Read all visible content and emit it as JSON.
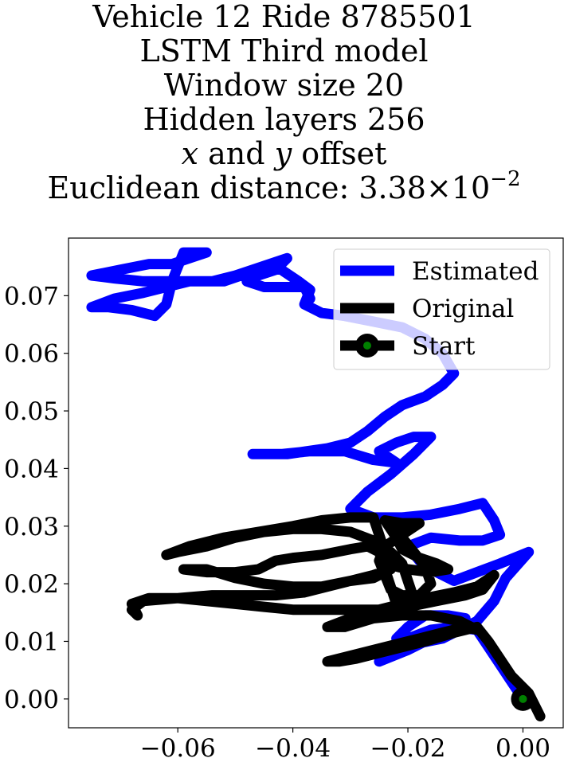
{
  "title_lines": {
    "line1": "Vehicle 12 Ride 8785501",
    "line2": "LSTM Third model",
    "line3": "Window size 20",
    "line4": "Hidden layers 256",
    "line5_x": "x",
    "line5_mid": " and ",
    "line5_y": "y",
    "line5_end": " offset",
    "line6_text": "Euclidean distance: 3.38×10",
    "line6_exp": "−2"
  },
  "chart_data": {
    "type": "line",
    "title": "Vehicle 12 Ride 8785501 LSTM Third model Window size 20 Hidden layers 256 x and y offset Euclidean distance: 3.38×10^-2",
    "xlabel": "",
    "ylabel": "",
    "xlim": [
      -0.079,
      0.007
    ],
    "ylim": [
      -0.005,
      0.08
    ],
    "x_ticks": [
      -0.06,
      -0.04,
      -0.02,
      0.0
    ],
    "x_tick_labels": [
      "−0.06",
      "−0.04",
      "−0.02",
      "0.00"
    ],
    "y_ticks": [
      0.0,
      0.01,
      0.02,
      0.03,
      0.04,
      0.05,
      0.06,
      0.07
    ],
    "y_tick_labels": [
      "0.00",
      "0.01",
      "0.02",
      "0.03",
      "0.04",
      "0.05",
      "0.06",
      "0.07"
    ],
    "grid": false,
    "legend_position": "top-right",
    "colors": {
      "estimated": "#0000ff",
      "original": "#000000",
      "start_marker": "#008000"
    },
    "series": [
      {
        "name": "Estimated",
        "color": "#0000ff",
        "points": [
          [
            0.0,
            0.0
          ],
          [
            -0.002,
            0.003
          ],
          [
            -0.004,
            0.006
          ],
          [
            -0.006,
            0.009
          ],
          [
            -0.008,
            0.012
          ],
          [
            -0.012,
            0.0125
          ],
          [
            -0.016,
            0.012
          ],
          [
            -0.02,
            0.0105
          ],
          [
            -0.023,
            0.008
          ],
          [
            -0.025,
            0.0065
          ],
          [
            -0.02,
            0.0085
          ],
          [
            -0.014,
            0.0115
          ],
          [
            -0.01,
            0.014
          ],
          [
            -0.013,
            0.0145
          ],
          [
            -0.017,
            0.0145
          ],
          [
            -0.02,
            0.0125
          ],
          [
            -0.022,
            0.0105
          ],
          [
            -0.019,
            0.0095
          ],
          [
            -0.014,
            0.0105
          ],
          [
            -0.008,
            0.0135
          ],
          [
            -0.005,
            0.017
          ],
          [
            -0.003,
            0.021
          ],
          [
            0.001,
            0.0255
          ],
          [
            -0.004,
            0.0235
          ],
          [
            -0.008,
            0.022
          ],
          [
            -0.012,
            0.0205
          ],
          [
            -0.015,
            0.022
          ],
          [
            -0.018,
            0.024
          ],
          [
            -0.02,
            0.0265
          ],
          [
            -0.016,
            0.028
          ],
          [
            -0.011,
            0.0275
          ],
          [
            -0.007,
            0.0275
          ],
          [
            -0.004,
            0.0285
          ],
          [
            -0.005,
            0.031
          ],
          [
            -0.007,
            0.034
          ],
          [
            -0.011,
            0.033
          ],
          [
            -0.016,
            0.032
          ],
          [
            -0.021,
            0.0315
          ],
          [
            -0.026,
            0.0315
          ],
          [
            -0.03,
            0.033
          ],
          [
            -0.027,
            0.036
          ],
          [
            -0.023,
            0.039
          ],
          [
            -0.019,
            0.0425
          ],
          [
            -0.016,
            0.0455
          ],
          [
            -0.019,
            0.0455
          ],
          [
            -0.022,
            0.0445
          ],
          [
            -0.025,
            0.043
          ],
          [
            -0.022,
            0.041
          ],
          [
            -0.026,
            0.0415
          ],
          [
            -0.031,
            0.043
          ],
          [
            -0.037,
            0.043
          ],
          [
            -0.042,
            0.0425
          ],
          [
            -0.047,
            0.0425
          ],
          [
            -0.041,
            0.0425
          ],
          [
            -0.034,
            0.0435
          ],
          [
            -0.03,
            0.0445
          ],
          [
            -0.027,
            0.0465
          ],
          [
            -0.024,
            0.049
          ],
          [
            -0.021,
            0.051
          ],
          [
            -0.017,
            0.0525
          ],
          [
            -0.014,
            0.0545
          ],
          [
            -0.012,
            0.0565
          ],
          [
            -0.014,
            0.06
          ],
          [
            -0.017,
            0.0625
          ],
          [
            -0.021,
            0.0645
          ],
          [
            -0.026,
            0.0655
          ],
          [
            -0.031,
            0.0665
          ],
          [
            -0.035,
            0.067
          ],
          [
            -0.038,
            0.0685
          ],
          [
            -0.037,
            0.071
          ],
          [
            -0.039,
            0.0725
          ],
          [
            -0.042,
            0.0745
          ],
          [
            -0.045,
            0.075
          ],
          [
            -0.049,
            0.0735
          ],
          [
            -0.052,
            0.0725
          ],
          [
            -0.056,
            0.0725
          ],
          [
            -0.061,
            0.0725
          ],
          [
            -0.066,
            0.0725
          ],
          [
            -0.071,
            0.073
          ],
          [
            -0.075,
            0.0735
          ],
          [
            -0.07,
            0.0745
          ],
          [
            -0.065,
            0.0755
          ],
          [
            -0.061,
            0.0755
          ],
          [
            -0.058,
            0.0765
          ],
          [
            -0.055,
            0.0775
          ],
          [
            -0.059,
            0.0775
          ],
          [
            -0.061,
            0.0725
          ],
          [
            -0.062,
            0.0685
          ],
          [
            -0.064,
            0.0665
          ],
          [
            -0.068,
            0.0675
          ],
          [
            -0.072,
            0.068
          ],
          [
            -0.075,
            0.068
          ],
          [
            -0.071,
            0.0695
          ],
          [
            -0.066,
            0.0705
          ],
          [
            -0.062,
            0.0715
          ],
          [
            -0.058,
            0.0725
          ],
          [
            -0.054,
            0.0725
          ],
          [
            -0.05,
            0.0735
          ],
          [
            -0.047,
            0.0745
          ],
          [
            -0.044,
            0.0755
          ],
          [
            -0.041,
            0.0765
          ],
          [
            -0.043,
            0.0745
          ],
          [
            -0.046,
            0.0735
          ],
          [
            -0.048,
            0.0725
          ],
          [
            -0.045,
            0.0715
          ],
          [
            -0.042,
            0.0715
          ],
          [
            -0.038,
            0.0715
          ],
          [
            -0.037,
            0.0695
          ]
        ]
      },
      {
        "name": "Original",
        "color": "#000000",
        "points": [
          [
            0.003,
            -0.003
          ],
          [
            0.001,
            0.001
          ],
          [
            -0.002,
            0.004
          ],
          [
            -0.004,
            0.007
          ],
          [
            -0.006,
            0.01
          ],
          [
            -0.008,
            0.0125
          ],
          [
            -0.012,
            0.0115
          ],
          [
            -0.017,
            0.01
          ],
          [
            -0.021,
            0.009
          ],
          [
            -0.025,
            0.008
          ],
          [
            -0.029,
            0.007
          ],
          [
            -0.032,
            0.0065
          ],
          [
            -0.034,
            0.0065
          ],
          [
            -0.03,
            0.0075
          ],
          [
            -0.026,
            0.0085
          ],
          [
            -0.022,
            0.0095
          ],
          [
            -0.018,
            0.0105
          ],
          [
            -0.014,
            0.0115
          ],
          [
            -0.01,
            0.0125
          ],
          [
            -0.008,
            0.012
          ],
          [
            -0.011,
            0.0135
          ],
          [
            -0.016,
            0.0145
          ],
          [
            -0.021,
            0.0145
          ],
          [
            -0.026,
            0.014
          ],
          [
            -0.031,
            0.0125
          ],
          [
            -0.034,
            0.0125
          ],
          [
            -0.03,
            0.014
          ],
          [
            -0.025,
            0.015
          ],
          [
            -0.02,
            0.016
          ],
          [
            -0.015,
            0.017
          ],
          [
            -0.01,
            0.018
          ],
          [
            -0.007,
            0.019
          ],
          [
            -0.005,
            0.0215
          ],
          [
            -0.008,
            0.0195
          ],
          [
            -0.012,
            0.0185
          ],
          [
            -0.017,
            0.0175
          ],
          [
            -0.021,
            0.0165
          ],
          [
            -0.025,
            0.0155
          ],
          [
            -0.03,
            0.0155
          ],
          [
            -0.035,
            0.0155
          ],
          [
            -0.04,
            0.0155
          ],
          [
            -0.045,
            0.016
          ],
          [
            -0.05,
            0.0165
          ],
          [
            -0.055,
            0.017
          ],
          [
            -0.06,
            0.0175
          ],
          [
            -0.065,
            0.0175
          ],
          [
            -0.068,
            0.0165
          ],
          [
            -0.067,
            0.0145
          ],
          [
            -0.068,
            0.0155
          ],
          [
            -0.066,
            0.017
          ],
          [
            -0.06,
            0.0175
          ],
          [
            -0.054,
            0.018
          ],
          [
            -0.048,
            0.018
          ],
          [
            -0.043,
            0.018
          ],
          [
            -0.038,
            0.0185
          ],
          [
            -0.034,
            0.0195
          ],
          [
            -0.03,
            0.0205
          ],
          [
            -0.026,
            0.0215
          ],
          [
            -0.023,
            0.0225
          ],
          [
            -0.026,
            0.021
          ],
          [
            -0.03,
            0.0205
          ],
          [
            -0.035,
            0.0195
          ],
          [
            -0.04,
            0.0195
          ],
          [
            -0.045,
            0.02
          ],
          [
            -0.05,
            0.021
          ],
          [
            -0.055,
            0.0225
          ],
          [
            -0.059,
            0.0225
          ],
          [
            -0.055,
            0.022
          ],
          [
            -0.05,
            0.022
          ],
          [
            -0.046,
            0.0225
          ],
          [
            -0.043,
            0.024
          ],
          [
            -0.04,
            0.0245
          ],
          [
            -0.035,
            0.025
          ],
          [
            -0.03,
            0.026
          ],
          [
            -0.027,
            0.0265
          ],
          [
            -0.025,
            0.0255
          ],
          [
            -0.024,
            0.0225
          ],
          [
            -0.023,
            0.0195
          ],
          [
            -0.022,
            0.0165
          ],
          [
            -0.02,
            0.0155
          ],
          [
            -0.019,
            0.0175
          ],
          [
            -0.02,
            0.0205
          ],
          [
            -0.021,
            0.0235
          ],
          [
            -0.023,
            0.0255
          ],
          [
            -0.026,
            0.0275
          ],
          [
            -0.03,
            0.029
          ],
          [
            -0.035,
            0.0295
          ],
          [
            -0.04,
            0.0295
          ],
          [
            -0.045,
            0.029
          ],
          [
            -0.05,
            0.028
          ],
          [
            -0.055,
            0.0265
          ],
          [
            -0.06,
            0.0255
          ],
          [
            -0.062,
            0.025
          ],
          [
            -0.058,
            0.0265
          ],
          [
            -0.052,
            0.028
          ],
          [
            -0.046,
            0.029
          ],
          [
            -0.04,
            0.03
          ],
          [
            -0.035,
            0.031
          ],
          [
            -0.03,
            0.0315
          ],
          [
            -0.026,
            0.0315
          ],
          [
            -0.025,
            0.0285
          ],
          [
            -0.024,
            0.0255
          ],
          [
            -0.022,
            0.023
          ],
          [
            -0.02,
            0.0225
          ],
          [
            -0.016,
            0.022
          ],
          [
            -0.013,
            0.0225
          ],
          [
            -0.015,
            0.0235
          ],
          [
            -0.018,
            0.0245
          ],
          [
            -0.021,
            0.026
          ],
          [
            -0.022,
            0.028
          ],
          [
            -0.023,
            0.0295
          ],
          [
            -0.024,
            0.031
          ],
          [
            -0.021,
            0.0305
          ],
          [
            -0.018,
            0.0305
          ],
          [
            -0.021,
            0.0285
          ],
          [
            -0.024,
            0.0265
          ],
          [
            -0.025,
            0.024
          ],
          [
            -0.024,
            0.0215
          ],
          [
            -0.023,
            0.019
          ],
          [
            -0.021,
            0.018
          ],
          [
            -0.018,
            0.018
          ],
          [
            -0.016,
            0.02
          ],
          [
            -0.017,
            0.023
          ],
          [
            -0.019,
            0.0255
          ],
          [
            -0.021,
            0.028
          ],
          [
            -0.022,
            0.0295
          ]
        ]
      }
    ],
    "start_point": [
      0.0,
      0.0
    ],
    "legend": [
      {
        "name": "Estimated",
        "color": "#0000ff",
        "marker": false
      },
      {
        "name": "Original",
        "color": "#000000",
        "marker": false
      },
      {
        "name": "Start",
        "color": "#000000",
        "marker": true,
        "marker_face": "#008000"
      }
    ]
  }
}
